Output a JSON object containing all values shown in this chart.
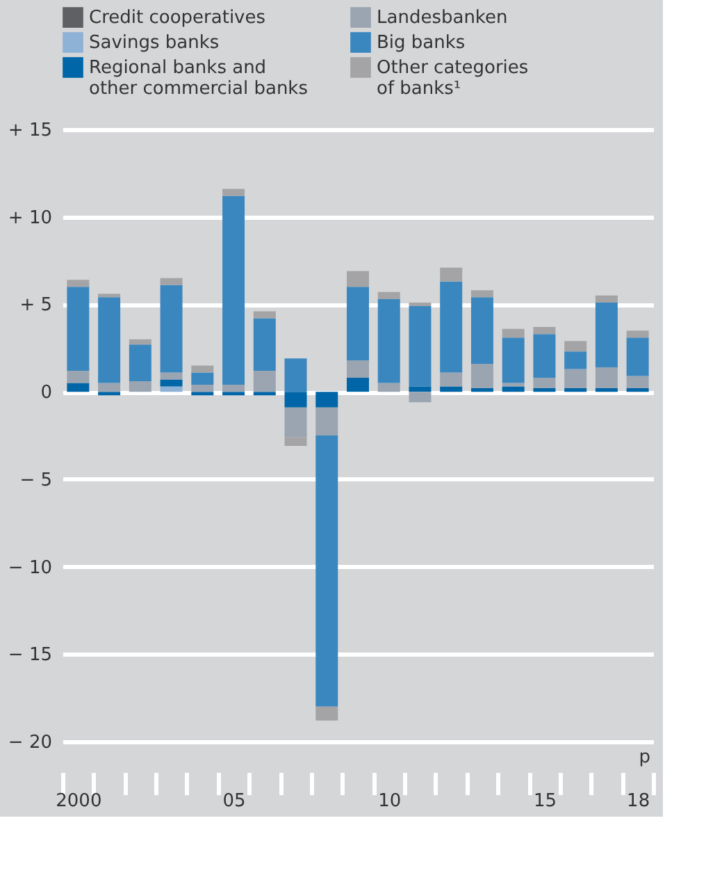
{
  "chart_data": {
    "type": "bar",
    "stacked": true,
    "categories": [
      "2000",
      null,
      null,
      null,
      null,
      "05",
      null,
      null,
      null,
      null,
      "10",
      null,
      null,
      null,
      null,
      "15",
      null,
      null,
      "18"
    ],
    "series": [
      {
        "name": "Credit cooperatives",
        "color": "#5f6063",
        "values": [
          0,
          0,
          0,
          0,
          0,
          0,
          0,
          0,
          0,
          0,
          0,
          0,
          0,
          0,
          0,
          0,
          0,
          0,
          0
        ]
      },
      {
        "name": "Savings banks",
        "color": "#8eb1d6",
        "values": [
          0,
          0,
          0,
          0.3,
          0,
          0,
          0,
          0,
          0,
          0,
          0,
          0,
          0,
          0,
          0,
          0,
          0,
          0,
          0
        ]
      },
      {
        "name": "Regional banks and other commercial banks",
        "color": "#0066a8",
        "values": [
          0.5,
          -0.2,
          0,
          0.4,
          -0.2,
          -0.2,
          -0.2,
          -0.9,
          -0.9,
          0.8,
          0,
          0.3,
          0.3,
          0.2,
          0.3,
          0.2,
          0.2,
          0.2,
          0.2
        ]
      },
      {
        "name": "Landesbanken",
        "color": "#9aa5b1",
        "values": [
          0.7,
          0.5,
          0.6,
          0.4,
          0.4,
          0.4,
          1.2,
          -1.7,
          -1.6,
          1.0,
          0.5,
          -0.6,
          0.8,
          1.4,
          0.2,
          0.6,
          1.1,
          1.2,
          0.7
        ]
      },
      {
        "name": "Big banks",
        "color": "#3a87c0",
        "values": [
          4.8,
          4.9,
          2.1,
          5.0,
          0.7,
          10.8,
          3.0,
          1.9,
          -15.5,
          4.2,
          4.8,
          4.6,
          5.2,
          3.8,
          2.6,
          2.5,
          1.0,
          3.7,
          2.2
        ]
      },
      {
        "name": "Other categories of banks¹",
        "color": "#a4a4a6",
        "values": [
          0.4,
          0.2,
          0.3,
          0.4,
          0.4,
          0.4,
          0.4,
          -0.5,
          -0.8,
          0.9,
          0.4,
          0.2,
          0.8,
          0.4,
          0.5,
          0.4,
          0.6,
          0.4,
          0.4
        ]
      }
    ],
    "ylim": [
      -20,
      15
    ],
    "yticks": [
      {
        "value": 15,
        "label": "+ 15"
      },
      {
        "value": 10,
        "label": "+ 10"
      },
      {
        "value": 5,
        "label": "+ 5"
      },
      0,
      {
        "value": -5,
        "label": "− 5"
      },
      {
        "value": -10,
        "label": "− 10"
      },
      {
        "value": -15,
        "label": "− 15"
      },
      {
        "value": -20,
        "label": "− 20"
      }
    ],
    "grid": "y",
    "legend": "top",
    "annotations": [
      "p"
    ]
  }
}
